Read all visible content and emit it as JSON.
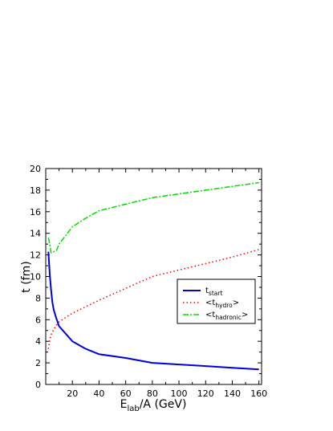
{
  "chart_data": {
    "type": "line",
    "xlabel": {
      "main": "E",
      "sub": "lab",
      "rest": "/A (GeV)"
    },
    "ylabel": "t (fm)",
    "xlim": [
      0,
      162
    ],
    "ylim": [
      0,
      20
    ],
    "x_ticks": [
      20,
      40,
      60,
      80,
      100,
      120,
      140,
      160
    ],
    "y_ticks": [
      0,
      2,
      4,
      6,
      8,
      10,
      12,
      14,
      16,
      18,
      20
    ],
    "grid": false,
    "legend_position": "right-middle",
    "series": [
      {
        "name": {
          "prefix": "t",
          "sub": "start",
          "suffix": ""
        },
        "color": "#0000dd",
        "style": "solid",
        "x": [
          2,
          3,
          4,
          5,
          6,
          8,
          10,
          15,
          20,
          30,
          40,
          60,
          80,
          100,
          120,
          140,
          160
        ],
        "y": [
          12.3,
          10.2,
          8.8,
          7.6,
          6.9,
          6.1,
          5.4,
          4.7,
          4.0,
          3.3,
          2.8,
          2.45,
          2.0,
          1.85,
          1.7,
          1.55,
          1.4
        ]
      },
      {
        "name": {
          "prefix": "<t",
          "sub": "hydro",
          "suffix": ">"
        },
        "color": "#ff0000",
        "style": "dotted",
        "x": [
          2,
          3,
          4,
          6,
          8,
          10,
          15,
          20,
          30,
          40,
          60,
          80,
          100,
          120,
          140,
          160
        ],
        "y": [
          3.3,
          4.1,
          4.6,
          5.1,
          5.5,
          5.8,
          6.2,
          6.6,
          7.2,
          7.8,
          8.9,
          10.0,
          10.6,
          11.2,
          11.8,
          12.5
        ]
      },
      {
        "name": {
          "prefix": "<t",
          "sub": "hadronic",
          "suffix": ">"
        },
        "color": "#00dd00",
        "style": "dashed",
        "x": [
          2,
          3,
          4,
          6,
          8,
          10,
          15,
          20,
          30,
          40,
          60,
          80,
          100,
          120,
          140,
          160
        ],
        "y": [
          13.6,
          13.0,
          12.2,
          12.3,
          12.4,
          13.0,
          13.8,
          14.6,
          15.4,
          16.1,
          16.7,
          17.3,
          17.65,
          18.0,
          18.35,
          18.7
        ]
      }
    ]
  }
}
